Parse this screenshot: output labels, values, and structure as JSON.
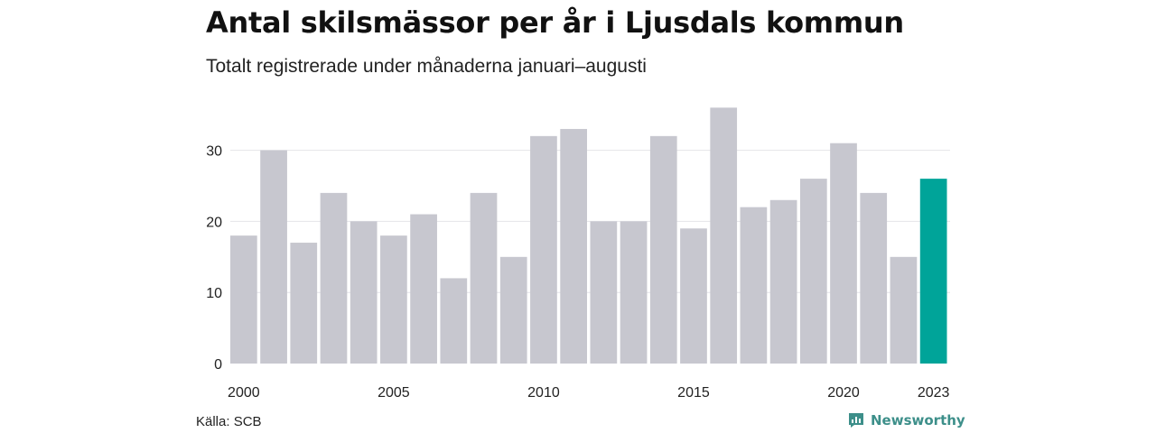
{
  "title": "Antal skilsmässor per år i Ljusdals kommun",
  "subtitle": "Totalt registrerade under månaderna januari–augusti",
  "source": "Källa: SCB",
  "brand": {
    "name": "Newsworthy",
    "icon": "newsworthy-logo-icon"
  },
  "colors": {
    "bar": "#c7c7cf",
    "highlight": "#00a499",
    "grid": "#e4e4e8",
    "brand": "#3d8f8a"
  },
  "chart_data": {
    "type": "bar",
    "categories": [
      "2000",
      "2001",
      "2002",
      "2003",
      "2004",
      "2005",
      "2006",
      "2007",
      "2008",
      "2009",
      "2010",
      "2011",
      "2012",
      "2013",
      "2014",
      "2015",
      "2016",
      "2017",
      "2018",
      "2019",
      "2020",
      "2021",
      "2022",
      "2023"
    ],
    "values": [
      18,
      30,
      17,
      24,
      20,
      18,
      21,
      12,
      24,
      15,
      32,
      33,
      20,
      20,
      32,
      19,
      36,
      22,
      23,
      26,
      31,
      24,
      15,
      26
    ],
    "highlight": "2023",
    "x_tick_labels": [
      "2000",
      "2005",
      "2010",
      "2015",
      "2020",
      "2023"
    ],
    "y_ticks": [
      0,
      10,
      20,
      30
    ],
    "ylim": [
      0,
      36
    ],
    "grid": true,
    "title": "Antal skilsmässor per år i Ljusdals kommun",
    "subtitle": "Totalt registrerade under månaderna januari–augusti",
    "xlabel": "",
    "ylabel": ""
  }
}
